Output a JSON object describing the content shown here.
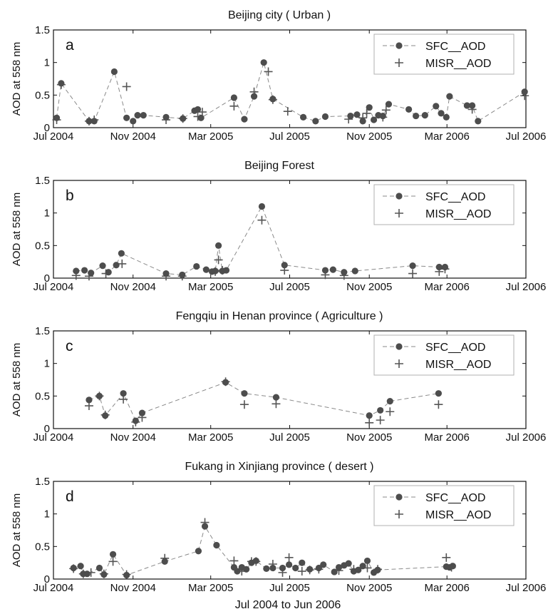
{
  "xlabel": "Jul 2004 to Jun 2006",
  "colors": {
    "sfc": "#4d4d4d",
    "misr": "#555555",
    "axis": "#111111",
    "legend_border": "#b0b0b0"
  },
  "chart_data": [
    {
      "type": "scatter",
      "panel": "a",
      "title": "Beijing city ( Urban )",
      "ylabel": "AOD at 558 nm",
      "ylim": [
        0,
        1.5
      ],
      "yticks": [
        "0",
        "0.5",
        "1",
        "1.5"
      ],
      "x_domain": [
        "2004-07-01",
        "2006-07-01"
      ],
      "xticks": [
        "Jul 2004",
        "Nov 2004",
        "Mar 2005",
        "Jul 2005",
        "Nov 2005",
        "Mar 2006",
        "Jul 2006"
      ],
      "legend_position": "top-right",
      "series": [
        {
          "name": "SFC__AOD",
          "marker": "circle",
          "x": [
            "2004-07-06",
            "2004-07-13",
            "2004-08-25",
            "2004-09-02",
            "2004-10-03",
            "2004-10-22",
            "2004-11-01",
            "2004-11-08",
            "2004-11-17",
            "2004-12-22",
            "2005-01-17",
            "2005-02-04",
            "2005-02-09",
            "2005-02-14",
            "2005-04-06",
            "2005-04-22",
            "2005-05-07",
            "2005-05-22",
            "2005-06-05",
            "2005-07-22",
            "2005-08-10",
            "2005-08-25",
            "2005-10-03",
            "2005-10-13",
            "2005-10-22",
            "2005-11-01",
            "2005-11-08",
            "2005-11-15",
            "2005-11-22",
            "2005-12-01",
            "2006-01-01",
            "2006-01-12",
            "2006-01-26",
            "2006-02-12",
            "2006-02-20",
            "2006-02-28",
            "2006-03-05",
            "2006-04-01",
            "2006-04-09",
            "2006-04-18",
            "2006-06-29"
          ],
          "y": [
            0.15,
            0.68,
            0.1,
            0.1,
            0.86,
            0.15,
            0.1,
            0.19,
            0.19,
            0.16,
            0.14,
            0.26,
            0.28,
            0.15,
            0.46,
            0.13,
            0.48,
            1.0,
            0.44,
            0.16,
            0.1,
            0.17,
            0.18,
            0.2,
            0.1,
            0.31,
            0.12,
            0.19,
            0.18,
            0.36,
            0.28,
            0.18,
            0.19,
            0.33,
            0.22,
            0.16,
            0.48,
            0.34,
            0.34,
            0.1,
            0.55
          ]
        },
        {
          "name": "MISR__AOD",
          "marker": "plus",
          "x": [
            "2004-07-06",
            "2004-07-13",
            "2004-08-25",
            "2004-09-02",
            "2004-10-22",
            "2004-12-22",
            "2005-01-17",
            "2005-02-09",
            "2005-02-16",
            "2005-04-06",
            "2005-05-07",
            "2005-05-29",
            "2005-06-05",
            "2005-06-28",
            "2005-09-30",
            "2005-10-28",
            "2005-10-22",
            "2005-11-22",
            "2005-11-27",
            "2006-04-09",
            "2006-06-29"
          ],
          "y": [
            0.12,
            0.66,
            0.1,
            0.12,
            0.63,
            0.12,
            0.14,
            0.17,
            0.24,
            0.33,
            0.55,
            0.86,
            0.43,
            0.25,
            0.13,
            0.22,
            0.15,
            0.16,
            0.27,
            0.28,
            0.49
          ]
        }
      ]
    },
    {
      "type": "scatter",
      "panel": "b",
      "title": "Beijing Forest",
      "ylabel": "AOD at 558 nm",
      "ylim": [
        0,
        1.5
      ],
      "yticks": [
        "0",
        "0.5",
        "1",
        "1.5"
      ],
      "x_domain": [
        "2004-07-01",
        "2006-07-01"
      ],
      "xticks": [
        "Jul 2004",
        "Nov 2004",
        "Mar 2005",
        "Jul 2005",
        "Nov 2005",
        "Mar 2006",
        "Jul 2006"
      ],
      "legend_position": "top-right",
      "series": [
        {
          "name": "SFC__AOD",
          "marker": "circle",
          "x": [
            "2004-08-05",
            "2004-08-18",
            "2004-08-28",
            "2004-09-15",
            "2004-09-24",
            "2004-10-06",
            "2004-10-14",
            "2004-12-22",
            "2005-01-16",
            "2005-02-07",
            "2005-02-22",
            "2005-03-03",
            "2005-03-08",
            "2005-03-13",
            "2005-03-19",
            "2005-03-25",
            "2005-05-19",
            "2005-06-23",
            "2005-08-25",
            "2005-09-06",
            "2005-09-23",
            "2005-10-10",
            "2006-01-07",
            "2006-02-17",
            "2006-02-26"
          ],
          "y": [
            0.11,
            0.12,
            0.08,
            0.19,
            0.09,
            0.2,
            0.38,
            0.07,
            0.05,
            0.18,
            0.13,
            0.1,
            0.11,
            0.5,
            0.11,
            0.12,
            1.1,
            0.2,
            0.12,
            0.13,
            0.09,
            0.11,
            0.19,
            0.17,
            0.17
          ]
        },
        {
          "name": "MISR__AOD",
          "marker": "plus",
          "x": [
            "2004-08-05",
            "2004-08-25",
            "2004-09-20",
            "2004-10-15",
            "2004-12-22",
            "2005-01-16",
            "2005-03-08",
            "2005-03-13",
            "2005-03-19",
            "2005-05-19",
            "2005-06-23",
            "2005-08-25",
            "2005-09-23",
            "2006-01-07",
            "2006-02-17",
            "2006-02-26"
          ],
          "y": [
            0.04,
            0.03,
            0.07,
            0.22,
            0.03,
            0.03,
            0.1,
            0.28,
            0.12,
            0.89,
            0.12,
            0.05,
            0.04,
            0.07,
            0.1,
            0.14
          ]
        }
      ]
    },
    {
      "type": "scatter",
      "panel": "c",
      "title": "Fengqiu in Henan province ( Agriculture )",
      "ylabel": "AOD at 558 nm",
      "ylim": [
        0,
        1.5
      ],
      "yticks": [
        "0",
        "0.5",
        "1",
        "1.5"
      ],
      "x_domain": [
        "2004-07-01",
        "2006-07-01"
      ],
      "xticks": [
        "Jul 2004",
        "Nov 2004",
        "Mar 2005",
        "Jul 2005",
        "Nov 2005",
        "Mar 2006",
        "Jul 2006"
      ],
      "legend_position": "top-right",
      "series": [
        {
          "name": "SFC__AOD",
          "marker": "circle",
          "x": [
            "2004-08-25",
            "2004-09-10",
            "2004-09-19",
            "2004-10-17",
            "2004-11-05",
            "2004-11-15",
            "2005-03-24",
            "2005-04-22",
            "2005-06-10",
            "2005-11-01",
            "2005-11-18",
            "2005-12-03",
            "2006-02-16"
          ],
          "y": [
            0.44,
            0.5,
            0.2,
            0.54,
            0.12,
            0.24,
            0.71,
            0.54,
            0.48,
            0.2,
            0.28,
            0.42,
            0.54
          ]
        },
        {
          "name": "MISR__AOD",
          "marker": "plus",
          "x": [
            "2004-08-25",
            "2004-09-10",
            "2004-09-19",
            "2004-10-17",
            "2004-11-05",
            "2004-11-15",
            "2005-03-24",
            "2005-04-22",
            "2005-06-10",
            "2005-11-01",
            "2005-11-18",
            "2005-12-03",
            "2006-02-16"
          ],
          "y": [
            0.35,
            0.5,
            0.21,
            0.45,
            0.1,
            0.17,
            0.72,
            0.37,
            0.38,
            0.09,
            0.13,
            0.26,
            0.37
          ]
        }
      ]
    },
    {
      "type": "scatter",
      "panel": "d",
      "title": "Fukang in Xinjiang province ( desert )",
      "ylabel": "AOD at 558 nm",
      "ylim": [
        0,
        1.5
      ],
      "yticks": [
        "0",
        "0.5",
        "1",
        "1.5"
      ],
      "x_domain": [
        "2004-07-01",
        "2006-07-01"
      ],
      "xticks": [
        "Jul 2004",
        "Nov 2004",
        "Mar 2005",
        "Jul 2005",
        "Nov 2005",
        "Mar 2006",
        "Jul 2006"
      ],
      "legend_position": "top-right",
      "series": [
        {
          "name": "SFC__AOD",
          "marker": "circle",
          "x": [
            "2004-08-01",
            "2004-08-12",
            "2004-08-16",
            "2004-08-22",
            "2004-09-10",
            "2004-09-17",
            "2004-10-01",
            "2004-10-22",
            "2004-12-20",
            "2005-02-10",
            "2005-02-20",
            "2005-03-10",
            "2005-04-06",
            "2005-04-11",
            "2005-04-18",
            "2005-04-25",
            "2005-05-03",
            "2005-05-10",
            "2005-05-26",
            "2005-06-05",
            "2005-06-20",
            "2005-06-30",
            "2005-07-10",
            "2005-07-20",
            "2005-08-01",
            "2005-08-15",
            "2005-08-22",
            "2005-09-08",
            "2005-09-15",
            "2005-09-23",
            "2005-09-30",
            "2005-10-08",
            "2005-10-15",
            "2005-10-22",
            "2005-10-29",
            "2005-11-08",
            "2005-11-14",
            "2006-02-28",
            "2006-03-05",
            "2006-03-10"
          ],
          "y": [
            0.17,
            0.2,
            0.08,
            0.08,
            0.17,
            0.07,
            0.38,
            0.06,
            0.27,
            0.43,
            0.81,
            0.52,
            0.18,
            0.12,
            0.18,
            0.15,
            0.25,
            0.28,
            0.16,
            0.17,
            0.17,
            0.22,
            0.17,
            0.25,
            0.15,
            0.17,
            0.22,
            0.11,
            0.18,
            0.21,
            0.24,
            0.12,
            0.14,
            0.2,
            0.28,
            0.1,
            0.14,
            0.19,
            0.18,
            0.2
          ]
        },
        {
          "name": "MISR__AOD",
          "marker": "plus",
          "x": [
            "2004-08-01",
            "2004-08-16",
            "2004-08-28",
            "2004-09-17",
            "2004-10-01",
            "2004-10-22",
            "2004-12-20",
            "2005-02-20",
            "2005-04-06",
            "2005-04-18",
            "2005-05-03",
            "2005-05-10",
            "2005-06-05",
            "2005-06-20",
            "2005-06-30",
            "2005-07-20",
            "2005-08-01",
            "2005-08-15",
            "2005-09-15",
            "2005-10-08",
            "2005-10-29",
            "2005-11-14",
            "2006-02-28",
            "2006-03-08"
          ],
          "y": [
            0.16,
            0.08,
            0.1,
            0.08,
            0.27,
            0.07,
            0.32,
            0.87,
            0.28,
            0.12,
            0.27,
            0.27,
            0.23,
            0.1,
            0.33,
            0.12,
            0.14,
            0.15,
            0.13,
            0.15,
            0.17,
            0.15,
            0.33,
            0.18
          ]
        }
      ]
    }
  ]
}
